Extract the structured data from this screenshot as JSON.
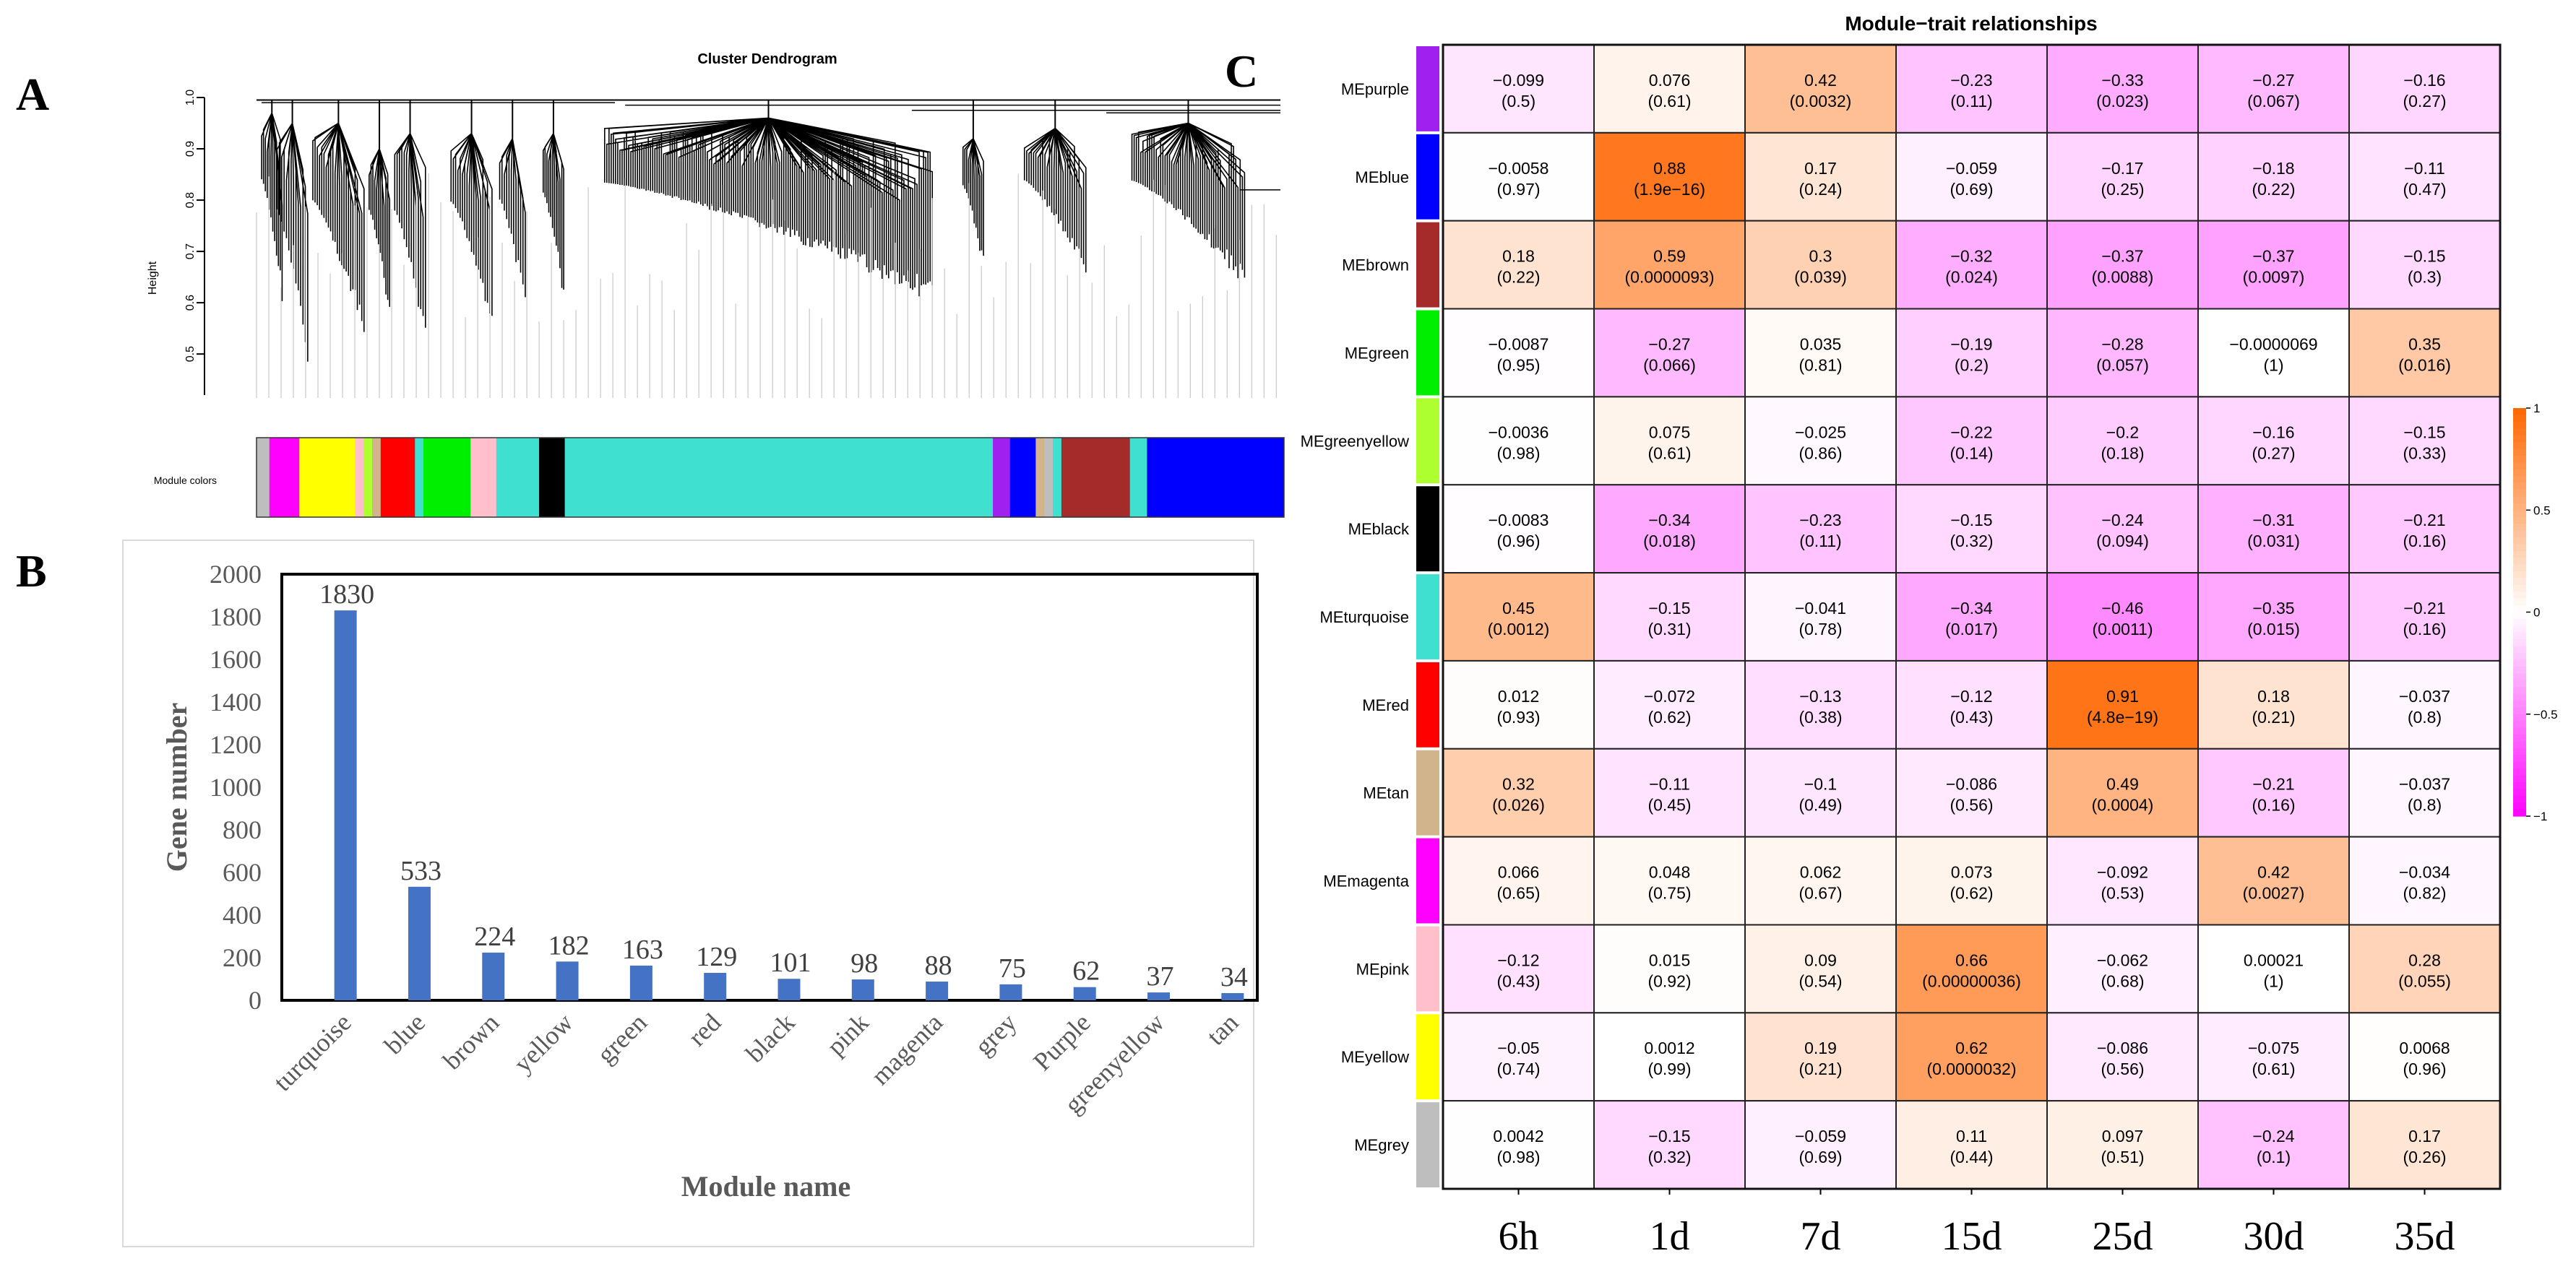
{
  "panels": {
    "a": "A",
    "b": "B",
    "c": "C"
  },
  "colors": {
    "bar": "#4472C4",
    "heat_neg": "#FF00FF",
    "heat_zero": "#FFFFFF",
    "heat_pos": "#FF6600",
    "dendro_line": "#000000",
    "module": {
      "purple": "#A020F0",
      "blue": "#0000FF",
      "brown": "#A52A2A",
      "green": "#00EE00",
      "greenyellow": "#ADFF2F",
      "black": "#000000",
      "turquoise": "#40E0D0",
      "red": "#FF0000",
      "tan": "#D2B48C",
      "magenta": "#FF00FF",
      "pink": "#FFC0CB",
      "yellow": "#FFFF00",
      "grey": "#BEBEBE"
    }
  },
  "chart_data": [
    {
      "id": "dendrogram",
      "type": "dendrogram",
      "title": "Cluster Dendrogram",
      "ylabel": "Height",
      "ylim": [
        0.42,
        1.0
      ],
      "yticks": [
        0.5,
        0.6,
        0.7,
        0.8,
        0.9,
        1.0
      ],
      "ytick_labels": [
        "0.5",
        "0.6",
        "0.7",
        "0.8",
        "0.9",
        "1.0"
      ],
      "color_row_label": "Module colors",
      "color_segments": [
        {
          "module": "grey",
          "width": 1.5
        },
        {
          "module": "magenta",
          "width": 3.5
        },
        {
          "module": "yellow",
          "width": 6.5
        },
        {
          "module": "pink",
          "width": 1
        },
        {
          "module": "greenyellow",
          "width": 1
        },
        {
          "module": "tan",
          "width": 1
        },
        {
          "module": "red",
          "width": 4
        },
        {
          "module": "turquoise",
          "width": 1
        },
        {
          "module": "green",
          "width": 5.5
        },
        {
          "module": "pink",
          "width": 3
        },
        {
          "module": "turquoise",
          "width": 5
        },
        {
          "module": "black",
          "width": 3
        },
        {
          "module": "turquoise",
          "width": 50
        },
        {
          "module": "purple",
          "width": 2
        },
        {
          "module": "blue",
          "width": 3
        },
        {
          "module": "tan",
          "width": 1
        },
        {
          "module": "grey",
          "width": 1
        },
        {
          "module": "turquoise",
          "width": 1
        },
        {
          "module": "brown",
          "width": 8
        },
        {
          "module": "turquoise",
          "width": 2
        },
        {
          "module": "blue",
          "width": 16
        }
      ],
      "clusters": [
        {
          "module": "grey",
          "pos": 1.5,
          "width": 2,
          "bottom": 0.6,
          "join": 0.97
        },
        {
          "module": "magenta",
          "pos": 3.5,
          "width": 3,
          "bottom": 0.47,
          "join": 0.95
        },
        {
          "module": "yellow",
          "pos": 8,
          "width": 5,
          "bottom": 0.52,
          "join": 0.95
        },
        {
          "module": "pink",
          "pos": 12,
          "width": 2,
          "bottom": 0.56,
          "join": 0.9
        },
        {
          "module": "red",
          "pos": 15,
          "width": 3,
          "bottom": 0.5,
          "join": 0.93
        },
        {
          "module": "green",
          "pos": 21,
          "width": 4,
          "bottom": 0.55,
          "join": 0.93
        },
        {
          "module": "pink",
          "pos": 25,
          "width": 2.5,
          "bottom": 0.58,
          "join": 0.92
        },
        {
          "module": "black",
          "pos": 29,
          "width": 2,
          "bottom": 0.6,
          "join": 0.93
        },
        {
          "module": "turquoise",
          "pos": 50,
          "width": 32,
          "bottom": 0.6,
          "join": 0.96
        },
        {
          "module": "purple",
          "pos": 70,
          "width": 2,
          "bottom": 0.66,
          "join": 0.92
        },
        {
          "module": "brown",
          "pos": 78,
          "width": 6,
          "bottom": 0.65,
          "join": 0.94
        },
        {
          "module": "blue",
          "pos": 91,
          "width": 11,
          "bottom": 0.63,
          "join": 0.95
        }
      ]
    },
    {
      "id": "gene_counts",
      "type": "bar",
      "xlabel": "Module name",
      "ylabel": "Gene number",
      "ylim": [
        0,
        2000
      ],
      "yticks": [
        0,
        200,
        400,
        600,
        800,
        1000,
        1200,
        1400,
        1600,
        1800,
        2000
      ],
      "ytick_labels": [
        "0",
        "200",
        "400",
        "600",
        "800",
        "1000",
        "1200",
        "1400",
        "1600",
        "1800",
        "2000"
      ],
      "categories": [
        "turquoise",
        "blue",
        "brown",
        "yellow",
        "green",
        "red",
        "black",
        "pink",
        "magenta",
        "grey",
        "Purple",
        "greenyellow",
        "tan"
      ],
      "values": [
        1830,
        533,
        224,
        182,
        163,
        129,
        101,
        98,
        88,
        75,
        62,
        37,
        34
      ],
      "value_labels": [
        "1830",
        "533",
        "224",
        "182",
        "163",
        "129",
        "101",
        "98",
        "88",
        "75",
        "62",
        "37",
        "34"
      ]
    },
    {
      "id": "module_trait",
      "type": "heatmap",
      "title": "Module−trait relationships",
      "columns": [
        "6h",
        "1d",
        "7d",
        "15d",
        "25d",
        "30d",
        "35d"
      ],
      "rows": [
        "MEpurple",
        "MEblue",
        "MEbrown",
        "MEgreen",
        "MEgreenyellow",
        "MEblack",
        "MEturquoise",
        "MEred",
        "MEtan",
        "MEmagenta",
        "MEpink",
        "MEyellow",
        "MEgrey"
      ],
      "row_modules": [
        "purple",
        "blue",
        "brown",
        "green",
        "greenyellow",
        "black",
        "turquoise",
        "red",
        "tan",
        "magenta",
        "pink",
        "yellow",
        "grey"
      ],
      "legend_range": [
        -1,
        1
      ],
      "legend_ticks": [
        1,
        0.5,
        0,
        -0.5,
        -1
      ],
      "legend_tick_labels": [
        "1",
        "0.5",
        "0",
        "−0.5",
        "−1"
      ],
      "values": [
        [
          -0.099,
          0.076,
          0.42,
          -0.23,
          -0.33,
          -0.27,
          -0.16
        ],
        [
          -0.0058,
          0.88,
          0.17,
          -0.059,
          -0.17,
          -0.18,
          -0.11
        ],
        [
          0.18,
          0.59,
          0.3,
          -0.32,
          -0.37,
          -0.37,
          -0.15
        ],
        [
          -0.0087,
          -0.27,
          0.035,
          -0.19,
          -0.28,
          -6.9e-06,
          0.35
        ],
        [
          -0.0036,
          0.075,
          -0.025,
          -0.22,
          -0.2,
          -0.16,
          -0.15
        ],
        [
          -0.0083,
          -0.34,
          -0.23,
          -0.15,
          -0.24,
          -0.31,
          -0.21
        ],
        [
          0.45,
          -0.15,
          -0.041,
          -0.34,
          -0.46,
          -0.35,
          -0.21
        ],
        [
          0.012,
          -0.072,
          -0.13,
          -0.12,
          0.91,
          0.18,
          -0.037
        ],
        [
          0.32,
          -0.11,
          -0.1,
          -0.086,
          0.49,
          -0.21,
          -0.037
        ],
        [
          0.066,
          0.048,
          0.062,
          0.073,
          -0.092,
          0.42,
          -0.034
        ],
        [
          -0.12,
          0.015,
          0.09,
          0.66,
          -0.062,
          0.00021,
          0.28
        ],
        [
          -0.05,
          0.0012,
          0.19,
          0.62,
          -0.086,
          -0.075,
          0.0068
        ],
        [
          0.0042,
          -0.15,
          -0.059,
          0.11,
          0.097,
          -0.24,
          0.17
        ]
      ],
      "value_labels": [
        [
          "−0.099",
          "0.076",
          "0.42",
          "−0.23",
          "−0.33",
          "−0.27",
          "−0.16"
        ],
        [
          "−0.0058",
          "0.88",
          "0.17",
          "−0.059",
          "−0.17",
          "−0.18",
          "−0.11"
        ],
        [
          "0.18",
          "0.59",
          "0.3",
          "−0.32",
          "−0.37",
          "−0.37",
          "−0.15"
        ],
        [
          "−0.0087",
          "−0.27",
          "0.035",
          "−0.19",
          "−0.28",
          "−0.0000069",
          "0.35"
        ],
        [
          "−0.0036",
          "0.075",
          "−0.025",
          "−0.22",
          "−0.2",
          "−0.16",
          "−0.15"
        ],
        [
          "−0.0083",
          "−0.34",
          "−0.23",
          "−0.15",
          "−0.24",
          "−0.31",
          "−0.21"
        ],
        [
          "0.45",
          "−0.15",
          "−0.041",
          "−0.34",
          "−0.46",
          "−0.35",
          "−0.21"
        ],
        [
          "0.012",
          "−0.072",
          "−0.13",
          "−0.12",
          "0.91",
          "0.18",
          "−0.037"
        ],
        [
          "0.32",
          "−0.11",
          "−0.1",
          "−0.086",
          "0.49",
          "−0.21",
          "−0.037"
        ],
        [
          "0.066",
          "0.048",
          "0.062",
          "0.073",
          "−0.092",
          "0.42",
          "−0.034"
        ],
        [
          "−0.12",
          "0.015",
          "0.09",
          "0.66",
          "−0.062",
          "0.00021",
          "0.28"
        ],
        [
          "−0.05",
          "0.0012",
          "0.19",
          "0.62",
          "−0.086",
          "−0.075",
          "0.0068"
        ],
        [
          "0.0042",
          "−0.15",
          "−0.059",
          "0.11",
          "0.097",
          "−0.24",
          "0.17"
        ]
      ],
      "p_labels": [
        [
          "(0.5)",
          "(0.61)",
          "(0.0032)",
          "(0.11)",
          "(0.023)",
          "(0.067)",
          "(0.27)"
        ],
        [
          "(0.97)",
          "(1.9e−16)",
          "(0.24)",
          "(0.69)",
          "(0.25)",
          "(0.22)",
          "(0.47)"
        ],
        [
          "(0.22)",
          "(0.0000093)",
          "(0.039)",
          "(0.024)",
          "(0.0088)",
          "(0.0097)",
          "(0.3)"
        ],
        [
          "(0.95)",
          "(0.066)",
          "(0.81)",
          "(0.2)",
          "(0.057)",
          "(1)",
          "(0.016)"
        ],
        [
          "(0.98)",
          "(0.61)",
          "(0.86)",
          "(0.14)",
          "(0.18)",
          "(0.27)",
          "(0.33)"
        ],
        [
          "(0.96)",
          "(0.018)",
          "(0.11)",
          "(0.32)",
          "(0.094)",
          "(0.031)",
          "(0.16)"
        ],
        [
          "(0.0012)",
          "(0.31)",
          "(0.78)",
          "(0.017)",
          "(0.0011)",
          "(0.015)",
          "(0.16)"
        ],
        [
          "(0.93)",
          "(0.62)",
          "(0.38)",
          "(0.43)",
          "(4.8e−19)",
          "(0.21)",
          "(0.8)"
        ],
        [
          "(0.026)",
          "(0.45)",
          "(0.49)",
          "(0.56)",
          "(0.0004)",
          "(0.16)",
          "(0.8)"
        ],
        [
          "(0.65)",
          "(0.75)",
          "(0.67)",
          "(0.62)",
          "(0.53)",
          "(0.0027)",
          "(0.82)"
        ],
        [
          "(0.43)",
          "(0.92)",
          "(0.54)",
          "(0.00000036)",
          "(0.68)",
          "(1)",
          "(0.055)"
        ],
        [
          "(0.74)",
          "(0.99)",
          "(0.21)",
          "(0.0000032)",
          "(0.56)",
          "(0.61)",
          "(0.96)"
        ],
        [
          "(0.98)",
          "(0.32)",
          "(0.69)",
          "(0.44)",
          "(0.51)",
          "(0.1)",
          "(0.26)"
        ]
      ]
    }
  ]
}
